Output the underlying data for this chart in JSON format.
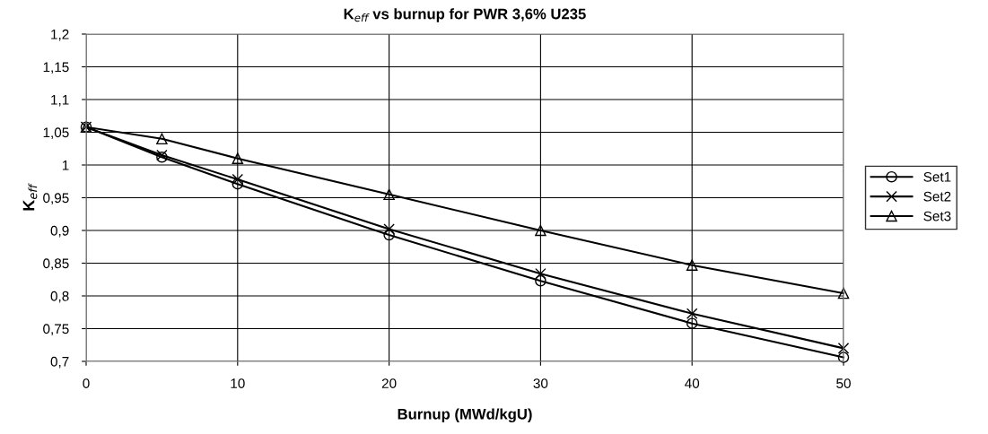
{
  "chart_data": {
    "type": "line",
    "title": "K$_{eff}$ vs burnup for PWR 3,6% U235",
    "xlabel": "Burnup (MWd/kgU)",
    "ylabel": "K$_{eff}$",
    "x": [
      0,
      5,
      10,
      20,
      30,
      40,
      50
    ],
    "series": [
      {
        "name": "Set1",
        "color": "#000000",
        "marker": "circle",
        "values": [
          1.058,
          1.012,
          0.971,
          0.893,
          0.823,
          0.758,
          0.706
        ]
      },
      {
        "name": "Set2",
        "color": "#000000",
        "marker": "cross",
        "values": [
          1.058,
          1.015,
          0.978,
          0.902,
          0.834,
          0.773,
          0.72
        ]
      },
      {
        "name": "Set3",
        "color": "#000000",
        "marker": "triangle",
        "values": [
          1.058,
          1.04,
          1.01,
          0.955,
          0.9,
          0.847,
          0.804
        ]
      }
    ],
    "xlim": [
      0,
      50
    ],
    "xticks": [
      0,
      10,
      20,
      30,
      40,
      50
    ],
    "ylim": [
      0.7,
      1.2
    ],
    "yticks": [
      {
        "value": 0.7,
        "label": "0,7"
      },
      {
        "value": 0.75,
        "label": "0,75"
      },
      {
        "value": 0.8,
        "label": "0,8"
      },
      {
        "value": 0.85,
        "label": "0,85"
      },
      {
        "value": 0.9,
        "label": "0,9"
      },
      {
        "value": 0.95,
        "label": "0,95"
      },
      {
        "value": 1,
        "label": "1"
      },
      {
        "value": 1.05,
        "label": "1,05"
      },
      {
        "value": 1.1,
        "label": "1,1"
      },
      {
        "value": 1.15,
        "label": "1,15"
      },
      {
        "value": 1.2,
        "label": "1,2"
      }
    ],
    "grid": true,
    "legend": "right",
    "line_style": "solid"
  }
}
